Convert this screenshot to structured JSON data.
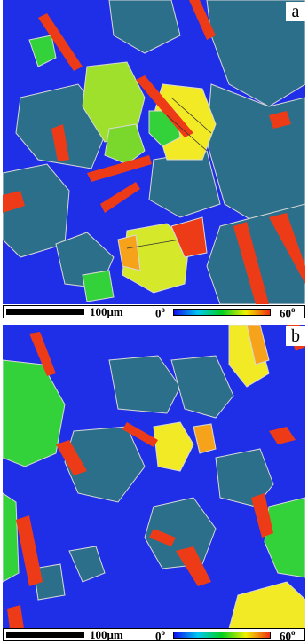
{
  "panels": [
    {
      "letter": "a",
      "scale_label": "100μm",
      "cmin": "0",
      "cmax": "60",
      "deg": "o"
    },
    {
      "letter": "b",
      "scale_label": "100μm",
      "cmin": "0",
      "cmax": "60",
      "deg": "o"
    }
  ],
  "colors": {
    "blue": "#1f2fe8",
    "teal": "#2c6f8a",
    "green": "#33d23a",
    "yellow": "#f2ea24",
    "orange": "#f6a21a",
    "red": "#ee3b17",
    "boundary": "#d9d9d9",
    "gradient_stops": [
      "#1010ee",
      "#00c8f0",
      "#00d020",
      "#f0f000",
      "#f03010"
    ]
  }
}
